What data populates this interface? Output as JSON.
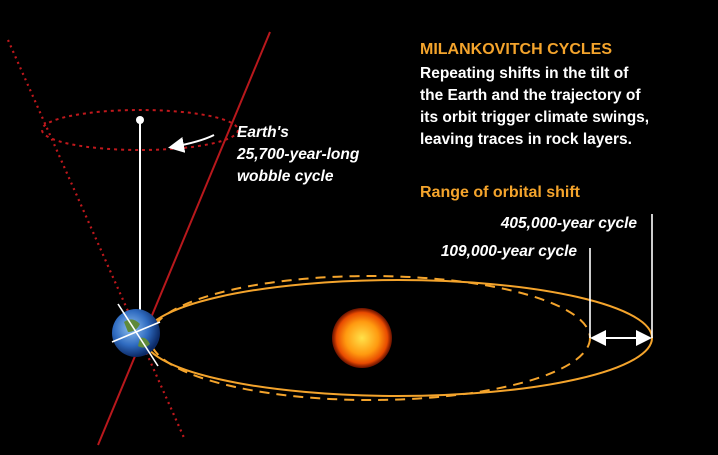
{
  "title": "MILANKOVITCH CYCLES",
  "description": [
    "Repeating shifts in the tilt of",
    "the Earth and the trajectory of",
    "its orbit trigger climate swings,",
    "leaving traces in rock layers."
  ],
  "wobble_label": [
    "Earth's",
    "25,700-year-long",
    "wobble cycle"
  ],
  "range_label": "Range of orbital shift",
  "cycle_outer": "405,000-year cycle",
  "cycle_inner": "109,000-year cycle"
}
